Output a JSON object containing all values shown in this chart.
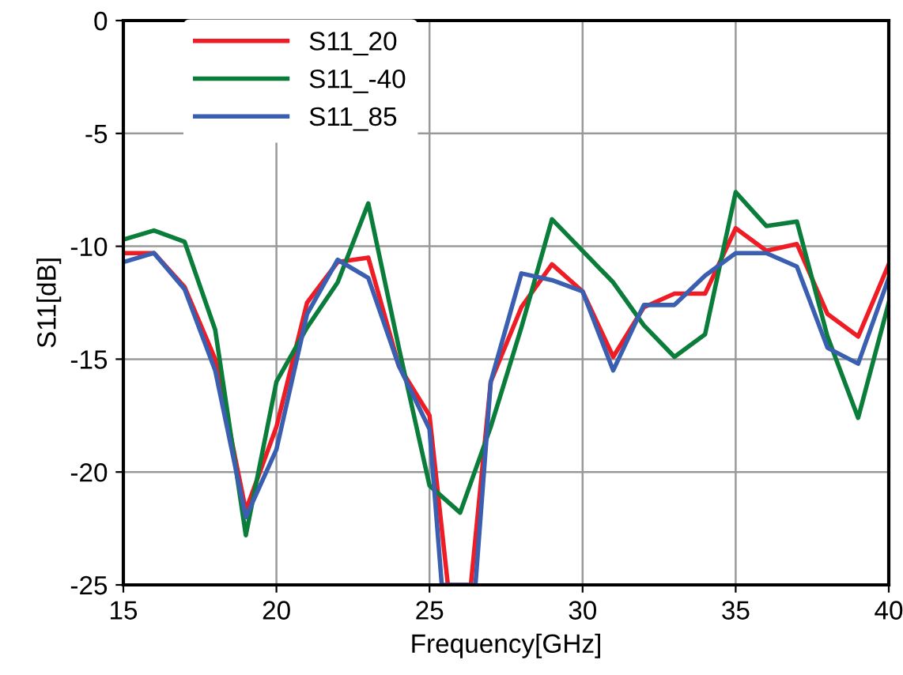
{
  "chart_data": {
    "type": "line",
    "xlabel": "Frequency[GHz]",
    "ylabel": "S11[dB]",
    "xlim": [
      15,
      40
    ],
    "xticks": [
      15,
      20,
      25,
      30,
      35,
      40
    ],
    "ylim": [
      -25,
      0
    ],
    "yticks": [
      -25,
      -20,
      -15,
      -10,
      -5,
      0
    ],
    "grid": true,
    "legend": "top left",
    "marker": "none",
    "line_style": "solid",
    "series": [
      {
        "name": "S11_20",
        "color": "#ee1c25",
        "x": [
          15,
          16,
          17,
          18,
          19,
          20,
          21,
          22,
          23,
          24,
          25,
          25.6,
          26.35,
          27,
          28,
          29,
          30,
          31,
          32,
          33,
          34,
          35,
          36,
          37,
          38,
          39,
          40
        ],
        "values": [
          -10.3,
          -10.3,
          -11.8,
          -15,
          -21.7,
          -18,
          -12.5,
          -10.7,
          -10.5,
          -15.3,
          -17.5,
          -25,
          -25,
          -16,
          -12.7,
          -10.8,
          -12,
          -14.9,
          -12.7,
          -12.1,
          -12.1,
          -9.2,
          -10.2,
          -9.9,
          -13,
          -14,
          -10.8
        ]
      },
      {
        "name": "S11_-40",
        "color": "#0a7d3a",
        "x": [
          15,
          16,
          17,
          18,
          19,
          20,
          21,
          22,
          23,
          24,
          25,
          26,
          27,
          28,
          29,
          30,
          31,
          32,
          33,
          34,
          35,
          36,
          37,
          38,
          39,
          40
        ],
        "values": [
          -9.7,
          -9.3,
          -9.8,
          -13.7,
          -22.8,
          -16,
          -13.6,
          -11.6,
          -8.1,
          -14.5,
          -20.6,
          -21.8,
          -18,
          -13.6,
          -8.8,
          -10.2,
          -11.6,
          -13.5,
          -14.9,
          -13.9,
          -7.6,
          -9.1,
          -8.9,
          -14,
          -17.6,
          -12.5
        ]
      },
      {
        "name": "S11_85",
        "color": "#3a5fb0",
        "x": [
          15,
          16,
          17,
          18,
          19,
          20,
          21,
          22,
          23,
          24,
          25,
          25.4,
          26.5,
          27,
          28,
          29,
          30,
          31,
          32,
          33,
          34,
          35,
          36,
          37,
          38,
          39,
          40
        ],
        "values": [
          -10.7,
          -10.3,
          -11.9,
          -15.5,
          -22,
          -19,
          -13,
          -10.6,
          -11.4,
          -15.3,
          -18.1,
          -25,
          -25,
          -16,
          -11.2,
          -11.5,
          -12,
          -15.5,
          -12.6,
          -12.6,
          -11.3,
          -10.3,
          -10.3,
          -10.9,
          -14.5,
          -15.2,
          -11.4
        ]
      }
    ]
  }
}
